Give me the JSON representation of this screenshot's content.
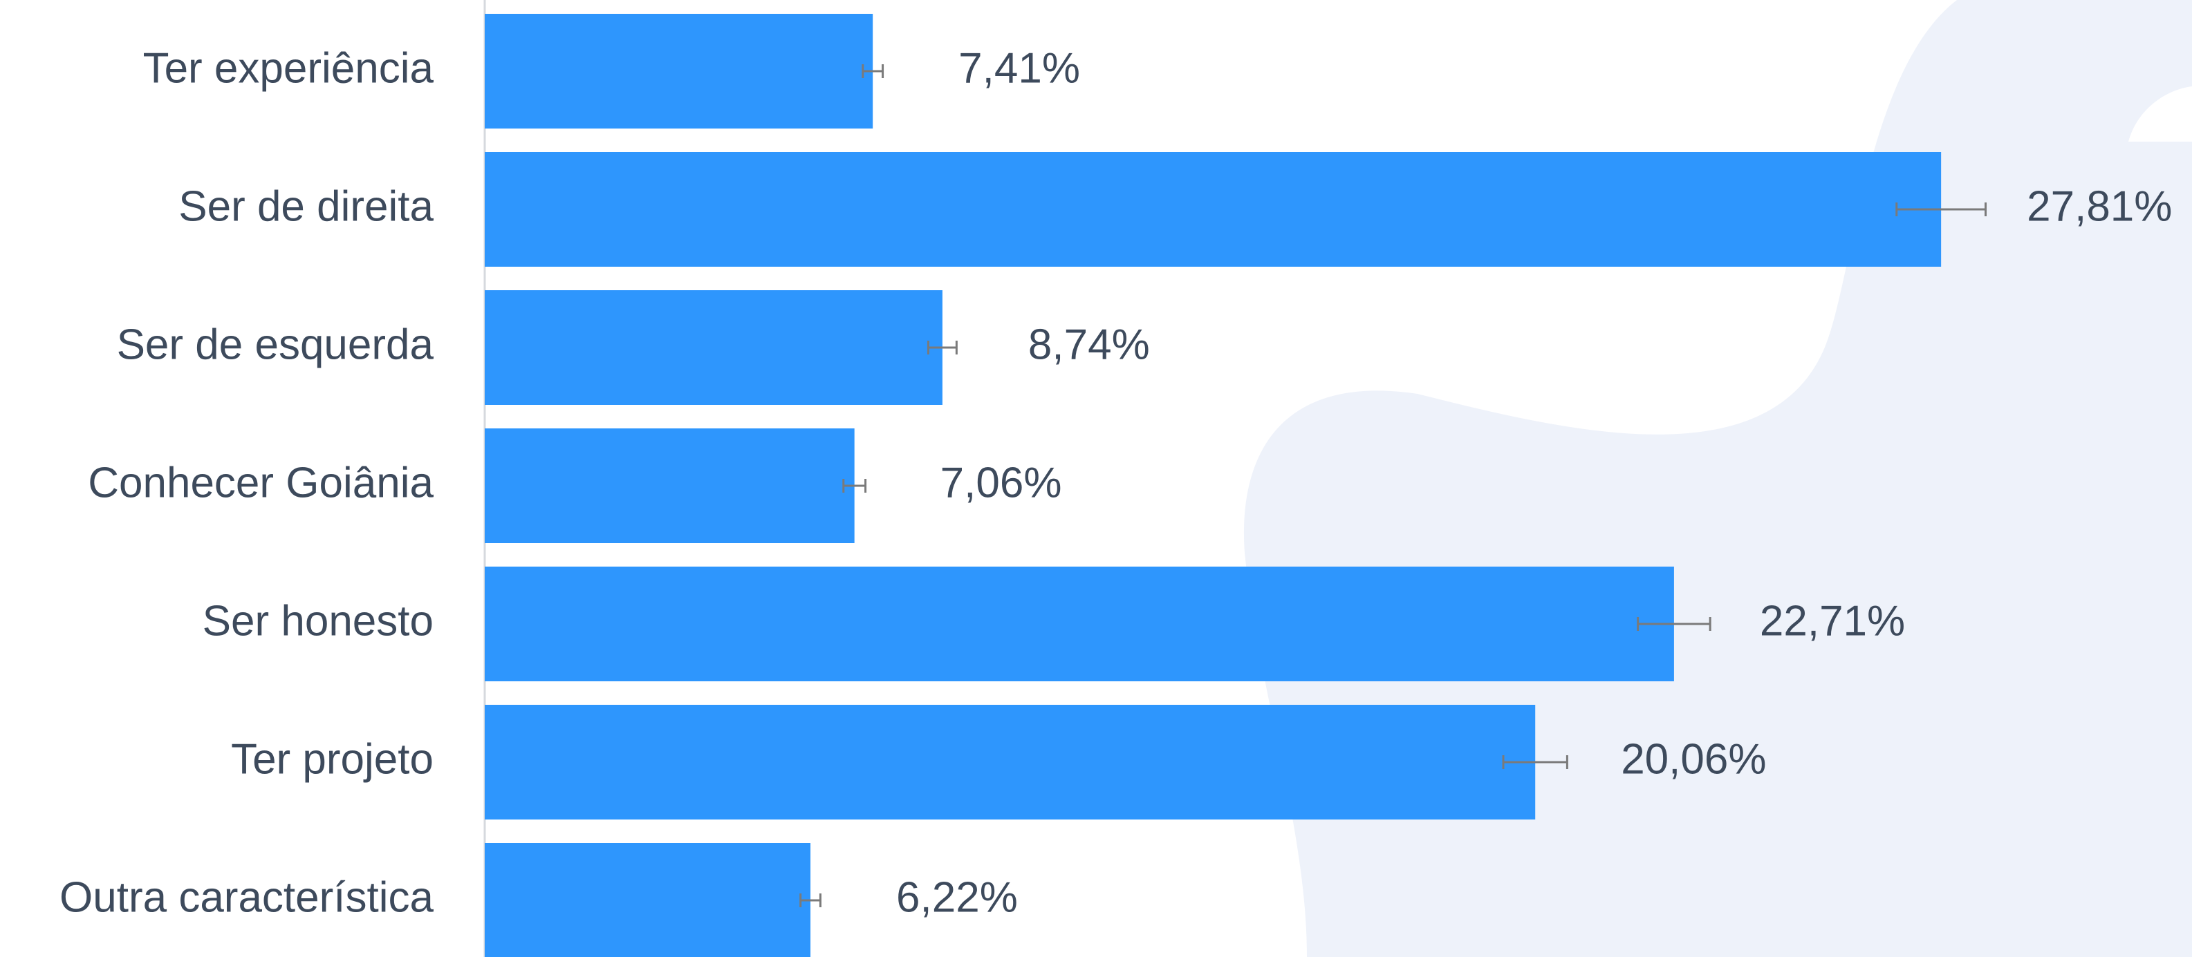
{
  "chart_data": {
    "type": "hbar",
    "categories": [
      "Ter experiência",
      "Ser de direita",
      "Ser de esquerda",
      "Conhecer Goiânia",
      "Ser honesto",
      "Ter projeto",
      "Outra característica"
    ],
    "values": [
      7.41,
      27.81,
      8.74,
      7.06,
      22.71,
      20.06,
      6.22
    ],
    "value_labels": [
      "7,41%",
      "27,81%",
      "8,74%",
      "7,06%",
      "22,71%",
      "20,06%",
      "6,22%"
    ],
    "errors": [
      0.19,
      0.85,
      0.27,
      0.21,
      0.69,
      0.61,
      0.19
    ],
    "color": "#2e96fd",
    "xlim": [
      0,
      30
    ]
  }
}
